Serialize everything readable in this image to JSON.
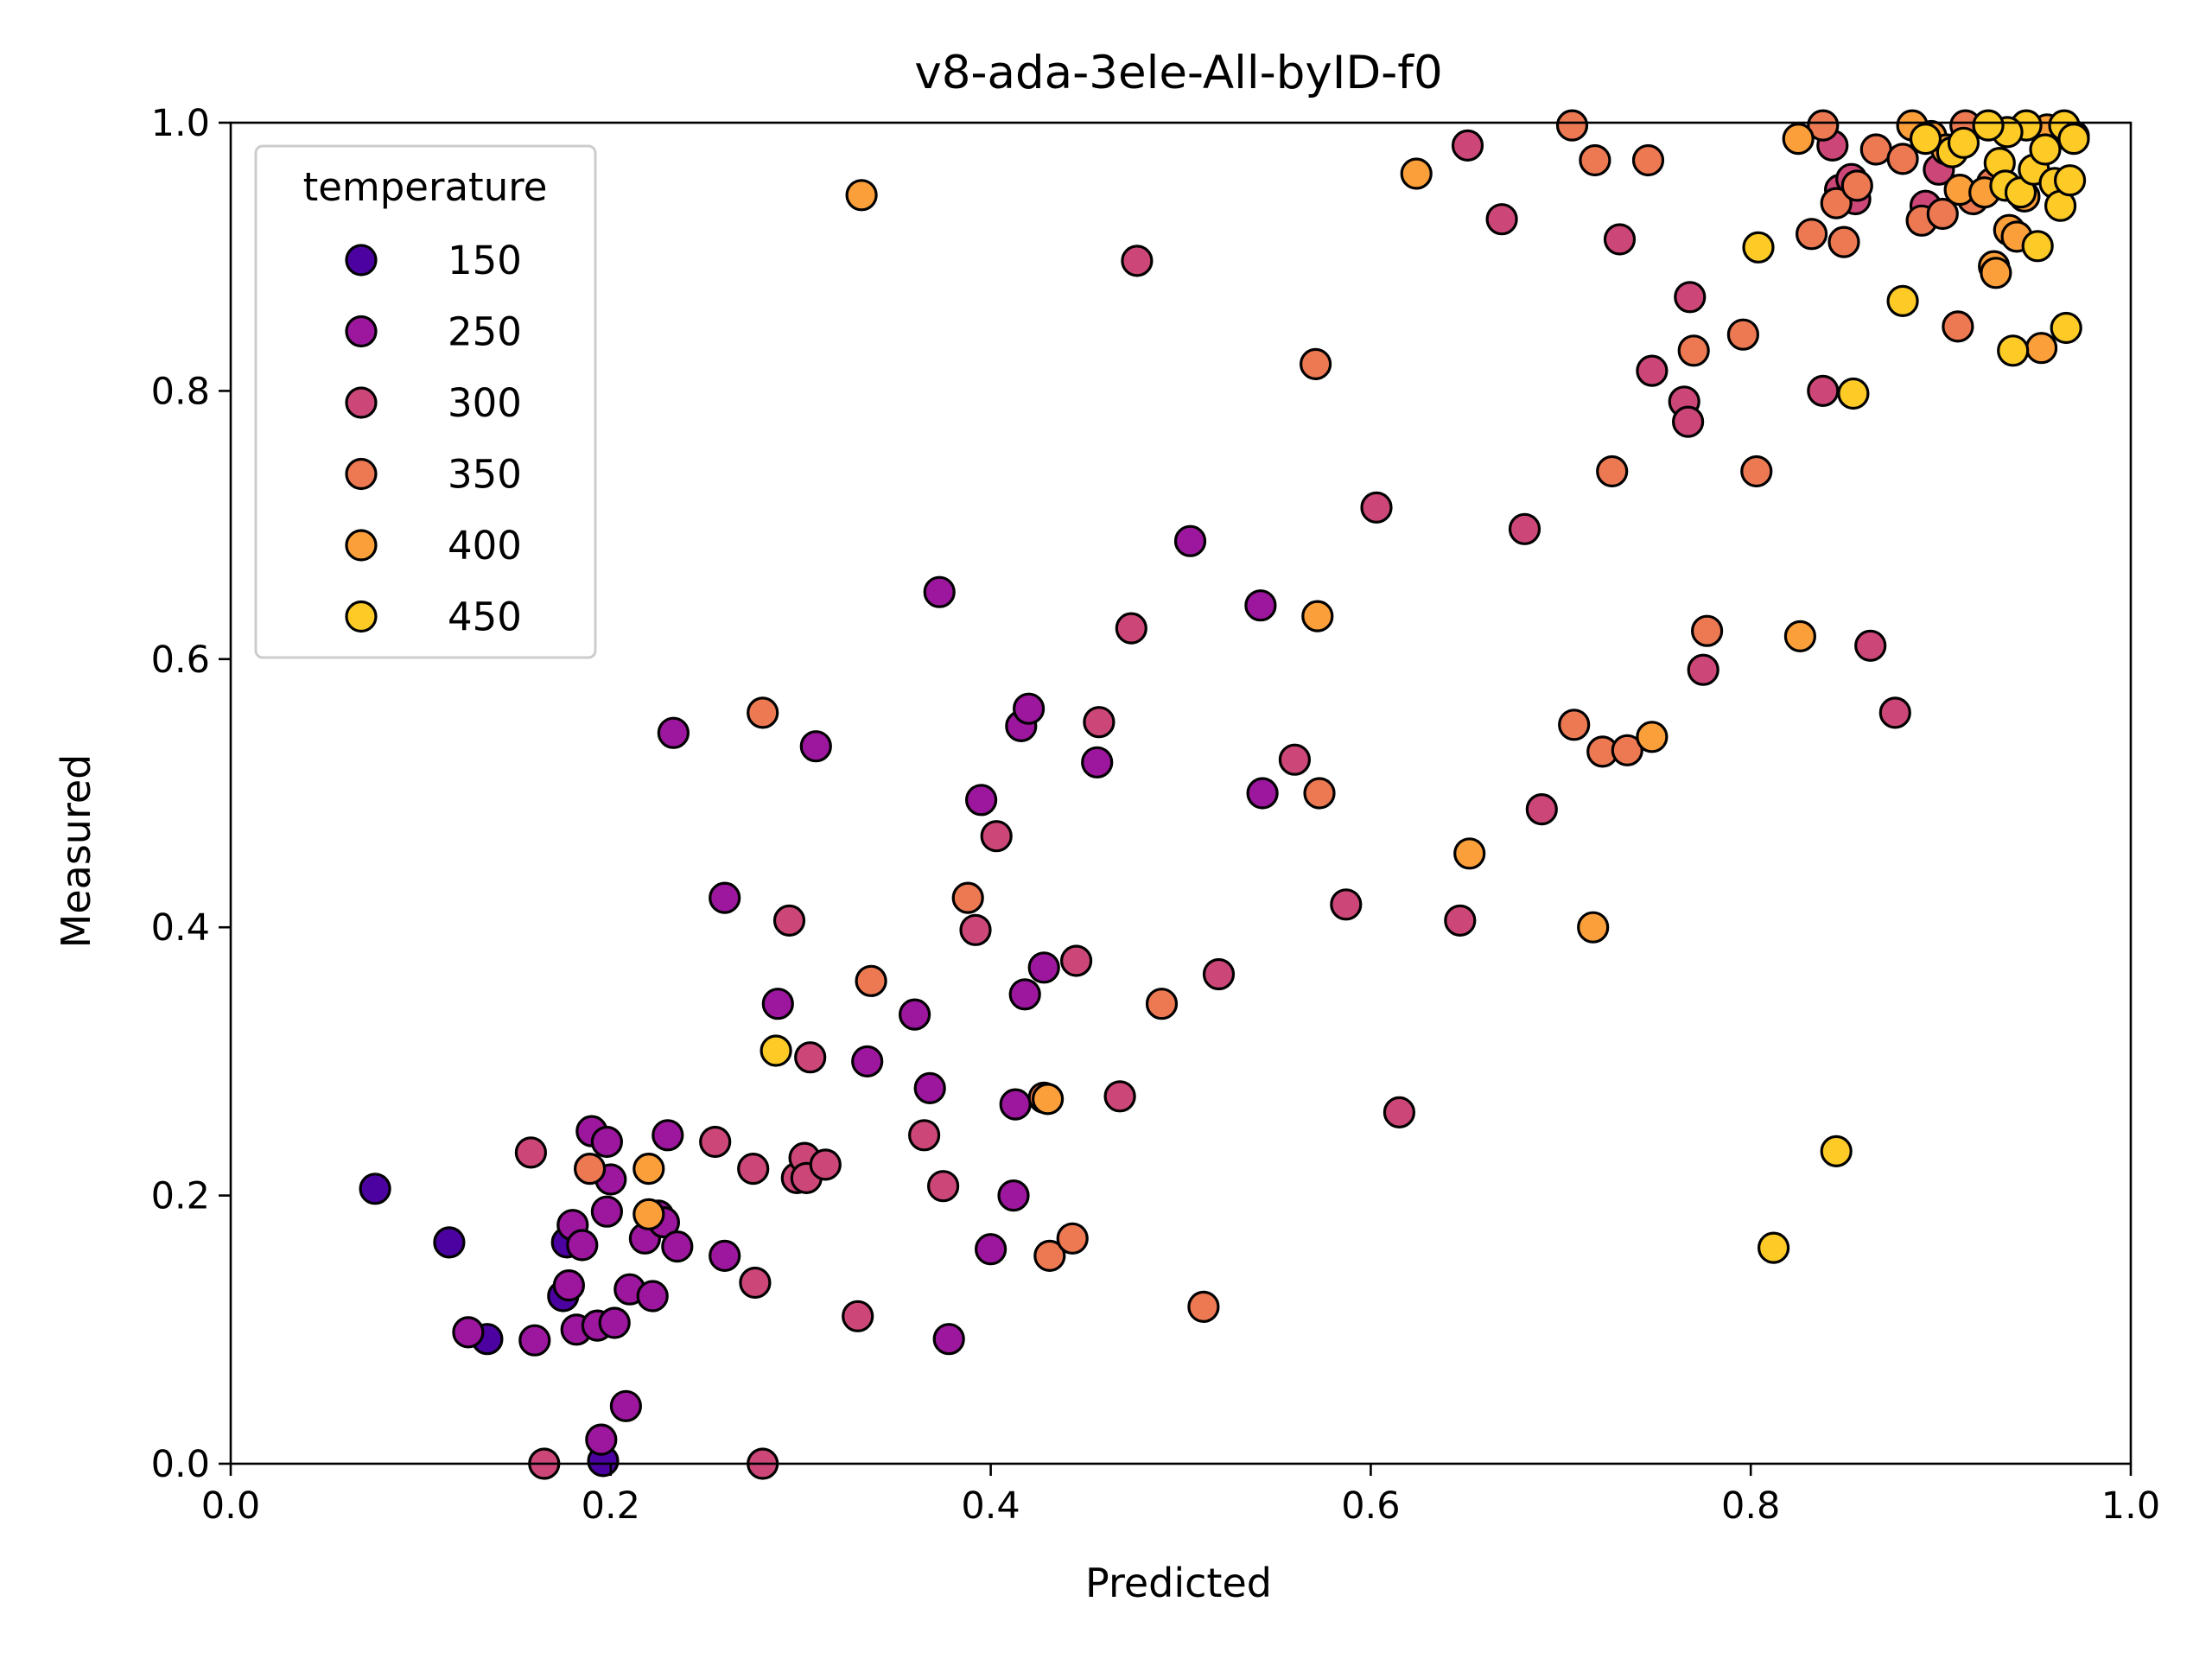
{
  "chart_data": {
    "type": "scatter",
    "title": "v8-ada-3ele-All-byID-f0",
    "xlabel": "Predicted",
    "ylabel": "Measured",
    "xlim": [
      0,
      1
    ],
    "ylim": [
      0,
      1
    ],
    "xticks": [
      "0.0",
      "0.2",
      "0.4",
      "0.6",
      "0.8",
      "1.0"
    ],
    "yticks": [
      "0.0",
      "0.2",
      "0.4",
      "0.6",
      "0.8",
      "1.0"
    ],
    "grid": false,
    "colormap": "plasma",
    "legend": {
      "title": "temperature",
      "placement": "upper-left",
      "entries": [
        {
          "label": "150",
          "color": "#4c02a1"
        },
        {
          "label": "250",
          "color": "#9c179e"
        },
        {
          "label": "300",
          "color": "#cc4778"
        },
        {
          "label": "350",
          "color": "#ed7953"
        },
        {
          "label": "400",
          "color": "#fb9f3a"
        },
        {
          "label": "450",
          "color": "#fdca26"
        }
      ]
    },
    "series": [
      {
        "name": "150",
        "color": "#4c02a1",
        "points": [
          [
            0.076,
            0.205
          ],
          [
            0.115,
            0.165
          ],
          [
            0.135,
            0.093
          ],
          [
            0.175,
            0.125
          ],
          [
            0.177,
            0.165
          ],
          [
            0.196,
            0.002
          ]
        ]
      },
      {
        "name": "250",
        "color": "#9c179e",
        "points": [
          [
            0.125,
            0.098
          ],
          [
            0.16,
            0.092
          ],
          [
            0.178,
            0.133
          ],
          [
            0.18,
            0.178
          ],
          [
            0.185,
            0.163
          ],
          [
            0.182,
            0.1
          ],
          [
            0.19,
            0.248
          ],
          [
            0.193,
            0.103
          ],
          [
            0.195,
            0.018
          ],
          [
            0.198,
            0.24
          ],
          [
            0.2,
            0.212
          ],
          [
            0.198,
            0.188
          ],
          [
            0.202,
            0.105
          ],
          [
            0.208,
            0.043
          ],
          [
            0.21,
            0.13
          ],
          [
            0.218,
            0.168
          ],
          [
            0.222,
            0.125
          ],
          [
            0.225,
            0.185
          ],
          [
            0.228,
            0.18
          ],
          [
            0.23,
            0.245
          ],
          [
            0.235,
            0.162
          ],
          [
            0.233,
            0.545
          ],
          [
            0.26,
            0.155
          ],
          [
            0.26,
            0.422
          ],
          [
            0.288,
            0.343
          ],
          [
            0.308,
            0.535
          ],
          [
            0.335,
            0.3
          ],
          [
            0.36,
            0.335
          ],
          [
            0.368,
            0.28
          ],
          [
            0.373,
            0.65
          ],
          [
            0.378,
            0.093
          ],
          [
            0.395,
            0.495
          ],
          [
            0.4,
            0.16
          ],
          [
            0.412,
            0.2
          ],
          [
            0.413,
            0.268
          ],
          [
            0.418,
            0.35
          ],
          [
            0.416,
            0.55
          ],
          [
            0.42,
            0.563
          ],
          [
            0.428,
            0.37
          ],
          [
            0.456,
            0.523
          ],
          [
            0.505,
            0.688
          ],
          [
            0.542,
            0.64
          ],
          [
            0.543,
            0.5
          ]
        ]
      },
      {
        "name": "300",
        "color": "#cc4778",
        "points": [
          [
            0.158,
            0.232
          ],
          [
            0.165,
            0.0
          ],
          [
            0.255,
            0.24
          ],
          [
            0.275,
            0.22
          ],
          [
            0.276,
            0.135
          ],
          [
            0.28,
            0.0
          ],
          [
            0.294,
            0.405
          ],
          [
            0.298,
            0.213
          ],
          [
            0.302,
            0.228
          ],
          [
            0.305,
            0.303
          ],
          [
            0.303,
            0.213
          ],
          [
            0.313,
            0.223
          ],
          [
            0.33,
            0.11
          ],
          [
            0.365,
            0.245
          ],
          [
            0.375,
            0.207
          ],
          [
            0.392,
            0.398
          ],
          [
            0.403,
            0.468
          ],
          [
            0.445,
            0.375
          ],
          [
            0.457,
            0.553
          ],
          [
            0.468,
            0.274
          ],
          [
            0.474,
            0.623
          ],
          [
            0.477,
            0.897
          ],
          [
            0.52,
            0.365
          ],
          [
            0.56,
            0.525
          ],
          [
            0.587,
            0.417
          ],
          [
            0.603,
            0.713
          ],
          [
            0.615,
            0.262
          ],
          [
            0.647,
            0.405
          ],
          [
            0.651,
            0.983
          ],
          [
            0.669,
            0.928
          ],
          [
            0.681,
            0.697
          ],
          [
            0.69,
            0.488
          ],
          [
            0.731,
            0.913
          ],
          [
            0.748,
            0.815
          ],
          [
            0.765,
            0.792
          ],
          [
            0.767,
            0.777
          ],
          [
            0.768,
            0.87
          ],
          [
            0.775,
            0.592
          ],
          [
            0.838,
            0.8
          ],
          [
            0.843,
            0.983
          ],
          [
            0.847,
            0.95
          ],
          [
            0.853,
            0.958
          ],
          [
            0.855,
            0.943
          ],
          [
            0.876,
            0.56
          ],
          [
            0.892,
            0.938
          ],
          [
            0.899,
            0.965
          ],
          [
            0.863,
            0.61
          ]
        ]
      },
      {
        "name": "350",
        "color": "#ed7953",
        "points": [
          [
            0.189,
            0.22
          ],
          [
            0.28,
            0.56
          ],
          [
            0.337,
            0.36
          ],
          [
            0.388,
            0.422
          ],
          [
            0.428,
            0.273
          ],
          [
            0.431,
            0.155
          ],
          [
            0.443,
            0.168
          ],
          [
            0.49,
            0.343
          ],
          [
            0.512,
            0.117
          ],
          [
            0.571,
            0.82
          ],
          [
            0.573,
            0.5
          ],
          [
            0.706,
            0.998
          ],
          [
            0.707,
            0.551
          ],
          [
            0.718,
            0.972
          ],
          [
            0.722,
            0.531
          ],
          [
            0.727,
            0.74
          ],
          [
            0.735,
            0.532
          ],
          [
            0.746,
            0.972
          ],
          [
            0.77,
            0.83
          ],
          [
            0.777,
            0.621
          ],
          [
            0.796,
            0.842
          ],
          [
            0.803,
            0.74
          ],
          [
            0.832,
            0.917
          ],
          [
            0.845,
            0.94
          ],
          [
            0.849,
            0.911
          ],
          [
            0.856,
            0.953
          ],
          [
            0.866,
            0.98
          ],
          [
            0.88,
            0.973
          ],
          [
            0.89,
            0.927
          ],
          [
            0.901,
            0.932
          ],
          [
            0.909,
            0.848
          ],
          [
            0.913,
            0.998
          ],
          [
            0.917,
            0.943
          ],
          [
            0.927,
            0.955
          ],
          [
            0.838,
            0.998
          ]
        ]
      },
      {
        "name": "400",
        "color": "#fb9f3a",
        "points": [
          [
            0.22,
            0.22
          ],
          [
            0.22,
            0.186
          ],
          [
            0.332,
            0.946
          ],
          [
            0.43,
            0.272
          ],
          [
            0.572,
            0.632
          ],
          [
            0.624,
            0.962
          ],
          [
            0.652,
            0.455
          ],
          [
            0.717,
            0.4
          ],
          [
            0.748,
            0.542
          ],
          [
            0.826,
            0.617
          ],
          [
            0.825,
            0.988
          ],
          [
            0.885,
            0.998
          ],
          [
            0.895,
            0.99
          ],
          [
            0.903,
            0.98
          ],
          [
            0.91,
            0.95
          ],
          [
            0.923,
            0.948
          ],
          [
            0.928,
            0.893
          ],
          [
            0.929,
            0.888
          ],
          [
            0.936,
            0.92
          ],
          [
            0.94,
            0.915
          ],
          [
            0.944,
            0.945
          ],
          [
            0.953,
            0.832
          ],
          [
            0.956,
            0.995
          ],
          [
            0.97,
            0.99
          ]
        ]
      },
      {
        "name": "450",
        "color": "#fdca26",
        "points": [
          [
            0.287,
            0.308
          ],
          [
            0.804,
            0.907
          ],
          [
            0.812,
            0.161
          ],
          [
            0.845,
            0.233
          ],
          [
            0.854,
            0.798
          ],
          [
            0.88,
            0.867
          ],
          [
            0.892,
            0.988
          ],
          [
            0.906,
            0.978
          ],
          [
            0.912,
            0.985
          ],
          [
            0.931,
            0.97
          ],
          [
            0.934,
            0.953
          ],
          [
            0.938,
            0.83
          ],
          [
            0.942,
            0.948
          ],
          [
            0.945,
            0.998
          ],
          [
            0.949,
            0.965
          ],
          [
            0.951,
            0.908
          ],
          [
            0.955,
            0.98
          ],
          [
            0.96,
            0.955
          ],
          [
            0.963,
            0.938
          ],
          [
            0.965,
            0.998
          ],
          [
            0.966,
            0.847
          ],
          [
            0.968,
            0.957
          ],
          [
            0.97,
            0.988
          ],
          [
            0.935,
            0.993
          ],
          [
            0.925,
            0.998
          ]
        ]
      }
    ]
  }
}
